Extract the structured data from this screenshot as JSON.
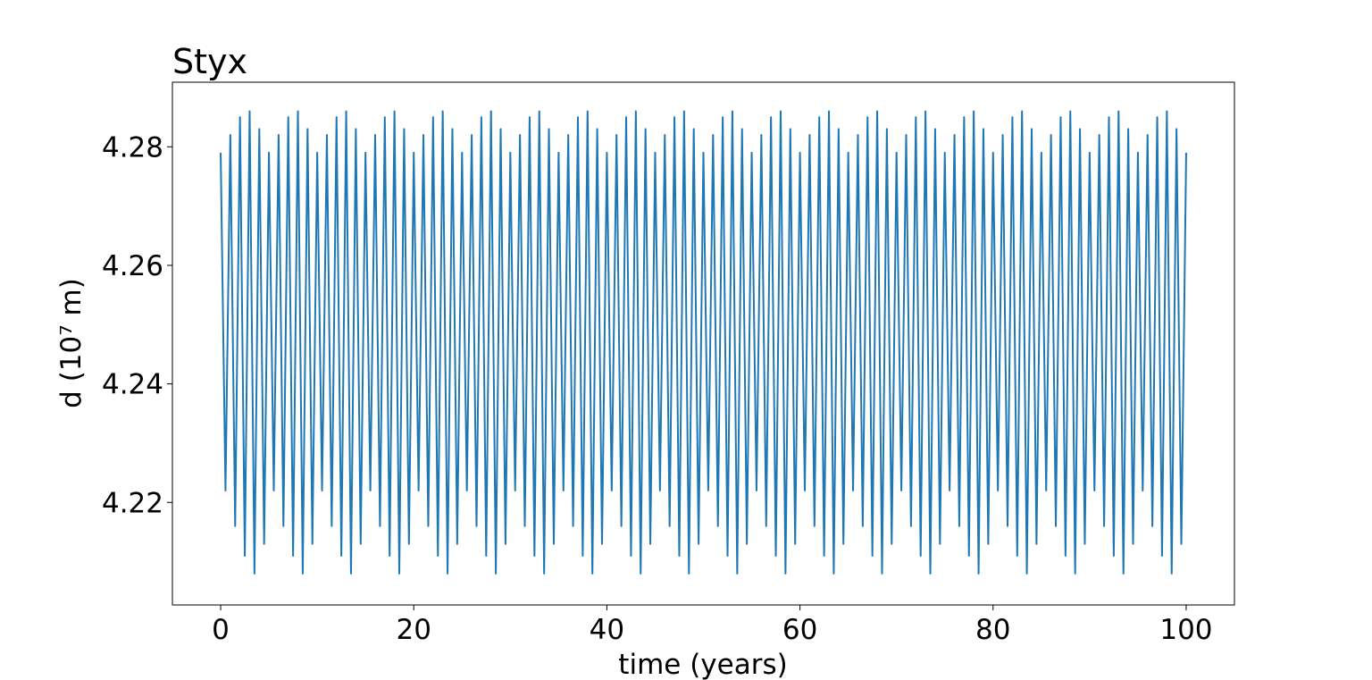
{
  "chart_data": {
    "type": "line",
    "title": "Styx",
    "xlabel": "time (years)",
    "ylabel": "d (10⁷ m)",
    "color": "#1f77b4",
    "grid": false,
    "xlim": [
      -5,
      105
    ],
    "ylim": [
      4.2027,
      4.2909
    ],
    "xticks": [
      0,
      20,
      40,
      60,
      80,
      100
    ],
    "yticks": [
      4.22,
      4.24,
      4.26,
      4.28
    ],
    "x": [
      0,
      0.5,
      1,
      1.5,
      2,
      2.5,
      3,
      3.5,
      4,
      4.5,
      5,
      5.5,
      6,
      6.5,
      7,
      7.5,
      8,
      8.5,
      9,
      9.5,
      10,
      10.5,
      11,
      11.5,
      12,
      12.5,
      13,
      13.5,
      14,
      14.5,
      15,
      15.5,
      16,
      16.5,
      17,
      17.5,
      18,
      18.5,
      19,
      19.5,
      20,
      20.5,
      21,
      21.5,
      22,
      22.5,
      23,
      23.5,
      24,
      24.5,
      25,
      25.5,
      26,
      26.5,
      27,
      27.5,
      28,
      28.5,
      29,
      29.5,
      30,
      30.5,
      31,
      31.5,
      32,
      32.5,
      33,
      33.5,
      34,
      34.5,
      35,
      35.5,
      36,
      36.5,
      37,
      37.5,
      38,
      38.5,
      39,
      39.5,
      40,
      40.5,
      41,
      41.5,
      42,
      42.5,
      43,
      43.5,
      44,
      44.5,
      45,
      45.5,
      46,
      46.5,
      47,
      47.5,
      48,
      48.5,
      49,
      49.5,
      50,
      50.5,
      51,
      51.5,
      52,
      52.5,
      53,
      53.5,
      54,
      54.5,
      55,
      55.5,
      56,
      56.5,
      57,
      57.5,
      58,
      58.5,
      59,
      59.5,
      60,
      60.5,
      61,
      61.5,
      62,
      62.5,
      63,
      63.5,
      64,
      64.5,
      65,
      65.5,
      66,
      66.5,
      67,
      67.5,
      68,
      68.5,
      69,
      69.5,
      70,
      70.5,
      71,
      71.5,
      72,
      72.5,
      73,
      73.5,
      74,
      74.5,
      75,
      75.5,
      76,
      76.5,
      77,
      77.5,
      78,
      78.5,
      79,
      79.5,
      80,
      80.5,
      81,
      81.5,
      82,
      82.5,
      83,
      83.5,
      84,
      84.5,
      85,
      85.5,
      86,
      86.5,
      87,
      87.5,
      88,
      88.5,
      89,
      89.5,
      90,
      90.5,
      91,
      91.5,
      92,
      92.5,
      93,
      93.5,
      94,
      94.5,
      95,
      95.5,
      96,
      96.5,
      97,
      97.5,
      98,
      98.5,
      99,
      99.5,
      100
    ],
    "values": [
      4.279,
      4.222,
      4.282,
      4.216,
      4.285,
      4.211,
      4.286,
      4.208,
      4.283,
      4.213,
      4.279,
      4.222,
      4.282,
      4.216,
      4.285,
      4.211,
      4.286,
      4.208,
      4.283,
      4.213,
      4.279,
      4.222,
      4.282,
      4.216,
      4.285,
      4.211,
      4.286,
      4.208,
      4.283,
      4.213,
      4.279,
      4.222,
      4.282,
      4.216,
      4.285,
      4.211,
      4.286,
      4.208,
      4.283,
      4.213,
      4.279,
      4.222,
      4.282,
      4.216,
      4.285,
      4.211,
      4.286,
      4.208,
      4.283,
      4.213,
      4.279,
      4.222,
      4.282,
      4.216,
      4.285,
      4.211,
      4.286,
      4.208,
      4.283,
      4.213,
      4.279,
      4.222,
      4.282,
      4.216,
      4.285,
      4.211,
      4.286,
      4.208,
      4.283,
      4.213,
      4.279,
      4.222,
      4.282,
      4.216,
      4.285,
      4.211,
      4.286,
      4.208,
      4.283,
      4.213,
      4.279,
      4.222,
      4.282,
      4.216,
      4.285,
      4.211,
      4.286,
      4.208,
      4.283,
      4.213,
      4.279,
      4.222,
      4.282,
      4.216,
      4.285,
      4.211,
      4.286,
      4.208,
      4.283,
      4.213,
      4.279,
      4.222,
      4.282,
      4.216,
      4.285,
      4.211,
      4.286,
      4.208,
      4.283,
      4.213,
      4.279,
      4.222,
      4.282,
      4.216,
      4.285,
      4.211,
      4.286,
      4.208,
      4.283,
      4.213,
      4.279,
      4.222,
      4.282,
      4.216,
      4.285,
      4.211,
      4.286,
      4.208,
      4.283,
      4.213,
      4.279,
      4.222,
      4.282,
      4.216,
      4.285,
      4.211,
      4.286,
      4.208,
      4.283,
      4.213,
      4.279,
      4.222,
      4.282,
      4.216,
      4.285,
      4.211,
      4.286,
      4.208,
      4.283,
      4.213,
      4.279,
      4.222,
      4.282,
      4.216,
      4.285,
      4.211,
      4.286,
      4.208,
      4.283,
      4.213,
      4.279,
      4.222,
      4.282,
      4.216,
      4.285,
      4.211,
      4.286,
      4.208,
      4.283,
      4.213,
      4.279,
      4.222,
      4.282,
      4.216,
      4.285,
      4.211,
      4.286,
      4.208,
      4.283,
      4.213,
      4.279,
      4.222,
      4.282,
      4.216,
      4.285,
      4.211,
      4.286,
      4.208,
      4.283,
      4.213,
      4.279,
      4.222,
      4.282,
      4.216,
      4.285,
      4.211,
      4.286,
      4.208,
      4.283,
      4.213,
      4.279
    ]
  }
}
